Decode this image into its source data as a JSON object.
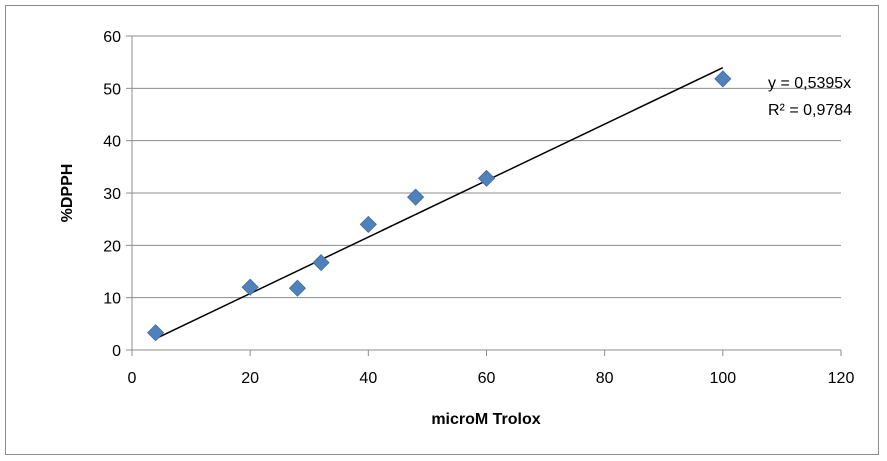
{
  "chart_data": {
    "type": "scatter",
    "title": "",
    "xlabel": "microM Trolox",
    "ylabel": "%DPPH",
    "xlim": [
      0,
      120
    ],
    "ylim": [
      0,
      60
    ],
    "x_ticks": [
      0,
      20,
      40,
      60,
      80,
      100,
      120
    ],
    "y_ticks": [
      0,
      10,
      20,
      30,
      40,
      50,
      60
    ],
    "grid": {
      "horizontal": true,
      "vertical": false
    },
    "legend": "none",
    "series": [
      {
        "marker": "diamond",
        "color": "#4f81bd",
        "points": [
          {
            "x": 4,
            "y": 3.3
          },
          {
            "x": 20,
            "y": 12.0
          },
          {
            "x": 28,
            "y": 11.8
          },
          {
            "x": 32,
            "y": 16.7
          },
          {
            "x": 40,
            "y": 24.0
          },
          {
            "x": 48,
            "y": 29.2
          },
          {
            "x": 60,
            "y": 32.8
          },
          {
            "x": 100,
            "y": 51.8
          }
        ]
      }
    ],
    "trendline": {
      "type": "linear-through-origin",
      "slope": 0.5395,
      "x_range": [
        4,
        100
      ],
      "color": "#000000",
      "equation_label": "y = 0,5395x",
      "r2_label": "R² = 0,9784"
    }
  }
}
